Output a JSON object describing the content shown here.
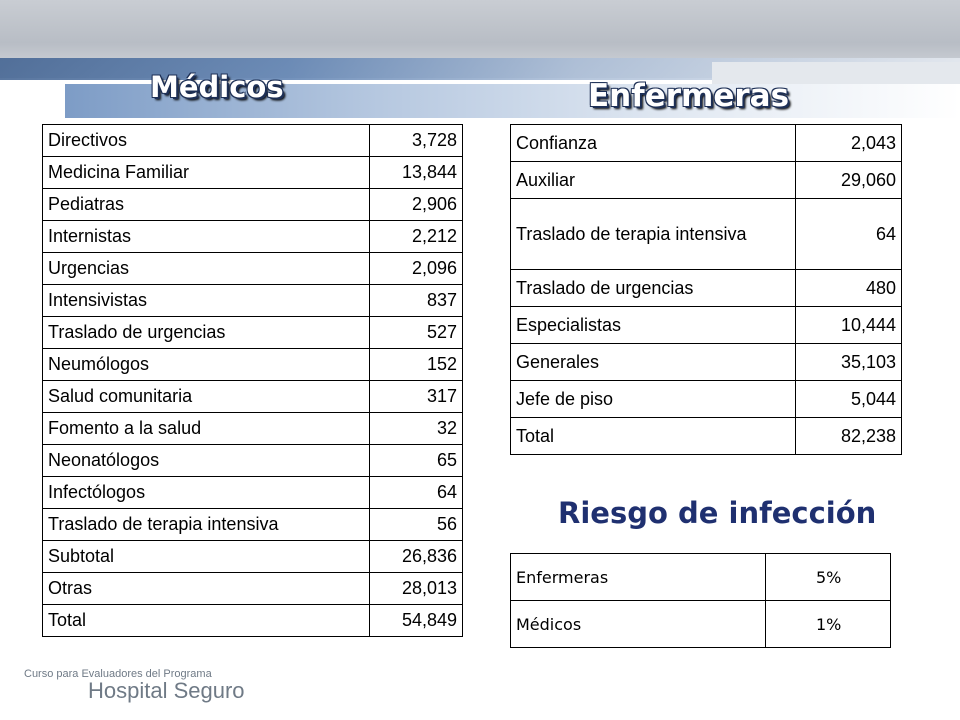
{
  "titles": {
    "medicos": "Médicos",
    "enfermeras": "Enfermeras",
    "riesgo": "Riesgo de infección"
  },
  "medicos_table": [
    {
      "label": "Directivos",
      "value": "3,728"
    },
    {
      "label": "Medicina Familiar",
      "value": "13,844"
    },
    {
      "label": "Pediatras",
      "value": "2,906"
    },
    {
      "label": "Internistas",
      "value": "2,212"
    },
    {
      "label": "Urgencias",
      "value": "2,096"
    },
    {
      "label": "Intensivistas",
      "value": "837"
    },
    {
      "label": "Traslado de urgencias",
      "value": "527"
    },
    {
      "label": "Neumólogos",
      "value": "152"
    },
    {
      "label": "Salud comunitaria",
      "value": "317"
    },
    {
      "label": "Fomento a la salud",
      "value": "32"
    },
    {
      "label": "Neonatólogos",
      "value": "65"
    },
    {
      "label": "Infectólogos",
      "value": "64"
    },
    {
      "label": "Traslado de terapia intensiva",
      "value": "56"
    },
    {
      "label": "Subtotal",
      "value": "26,836"
    },
    {
      "label": "Otras",
      "value": "28,013"
    },
    {
      "label": "Total",
      "value": "54,849"
    }
  ],
  "enfermeras_table": [
    {
      "label": "Confianza",
      "value": "2,043"
    },
    {
      "label": "Auxiliar",
      "value": "29,060"
    },
    {
      "label": "Traslado de terapia intensiva",
      "value": "64"
    },
    {
      "label": "Traslado de urgencias",
      "value": "480"
    },
    {
      "label": "Especialistas",
      "value": "10,444"
    },
    {
      "label": "Generales",
      "value": "35,103"
    },
    {
      "label": "Jefe de piso",
      "value": "5,044"
    },
    {
      "label": "Total",
      "value": "82,238"
    }
  ],
  "riesgo_table": [
    {
      "label": "Enfermeras",
      "value": "5%"
    },
    {
      "label": "Médicos",
      "value": "1%"
    }
  ],
  "watermark": {
    "course": "Curso para Evaluadores del Programa",
    "program": "Hospital Seguro"
  }
}
